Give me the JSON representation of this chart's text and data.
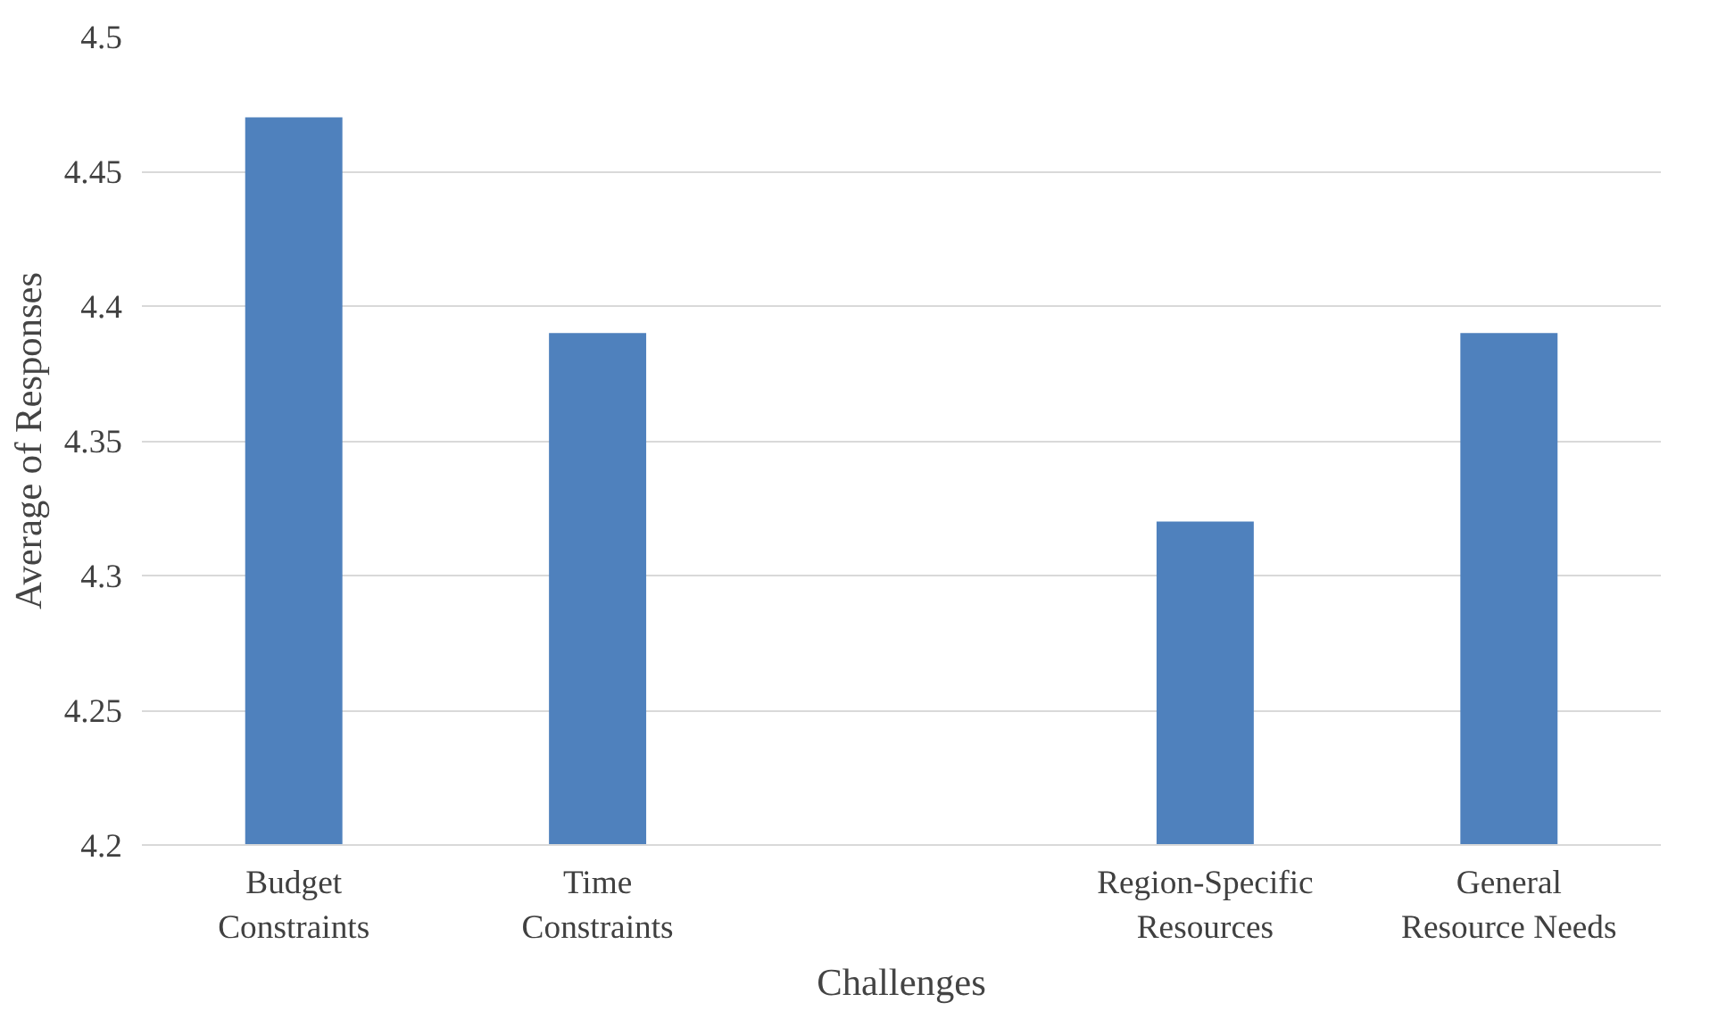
{
  "chart_data": {
    "type": "bar",
    "xlabel": "Challenges",
    "ylabel": "Average of Responses",
    "categories": [
      "Budget Constraints",
      "Time Constraints",
      null,
      "Region-Specific Resources",
      "General Resource Needs"
    ],
    "values": [
      4.47,
      4.39,
      null,
      4.32,
      4.39
    ],
    "color": "#4f81bd",
    "ylim": [
      4.2,
      4.5
    ],
    "yticks": [
      4.2,
      4.25,
      4.3,
      4.35,
      4.4,
      4.45,
      4.5
    ],
    "grid": "y"
  }
}
